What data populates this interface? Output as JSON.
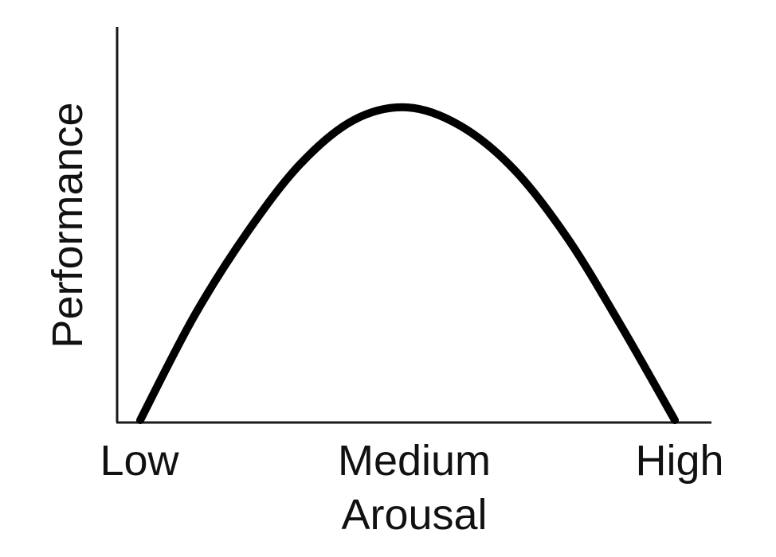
{
  "chart_data": {
    "type": "line",
    "title": "",
    "xlabel": "Arousal",
    "ylabel": "Performance",
    "categories": [
      "Low",
      "Medium",
      "High"
    ],
    "x": [
      0.0,
      0.1,
      0.2,
      0.3,
      0.4,
      0.5,
      0.6,
      0.7,
      0.8,
      0.9,
      1.0
    ],
    "series": [
      {
        "values": [
          0.0,
          0.33,
          0.6,
          0.82,
          0.96,
          1.0,
          0.94,
          0.8,
          0.58,
          0.3,
          0.0
        ]
      }
    ],
    "xlim": [
      0,
      1
    ],
    "ylim": [
      0,
      1
    ],
    "grid": false,
    "legend": "none",
    "colors": {
      "line": "#000000",
      "axis": "#1a1a1a"
    }
  }
}
